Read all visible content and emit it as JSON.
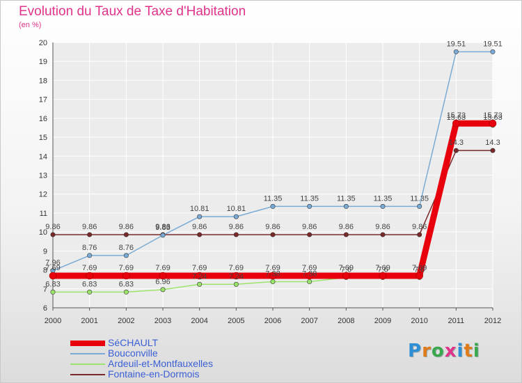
{
  "colors": {
    "title": "#e0338a",
    "axis_text": "#333333",
    "grid": "#ffffff"
  },
  "chart_data": {
    "type": "line",
    "title": "Evolution du Taux de Taxe d'Habitation",
    "subtitle": "(en %)",
    "ylim": [
      6,
      20
    ],
    "yticks": [
      6,
      7,
      8,
      9,
      10,
      11,
      12,
      13,
      14,
      15,
      16,
      17,
      18,
      19,
      20
    ],
    "categories": [
      "2000",
      "2001",
      "2002",
      "2003",
      "2004",
      "2005",
      "2006",
      "2007",
      "2008",
      "2009",
      "2010",
      "2011",
      "2012"
    ],
    "legend_position": "bottom-left",
    "series": [
      {
        "name": "SéCHAULT",
        "color": "#e8000d",
        "values": [
          7.69,
          7.69,
          7.69,
          7.69,
          7.69,
          7.69,
          7.69,
          7.69,
          7.69,
          7.69,
          7.69,
          15.73,
          15.73
        ]
      },
      {
        "name": "Bouconville",
        "color": "#7aabd6",
        "values": [
          7.96,
          8.76,
          8.76,
          9.83,
          10.81,
          10.81,
          11.35,
          11.35,
          11.35,
          11.35,
          11.35,
          19.51,
          19.51
        ]
      },
      {
        "name": "Ardeuil-et-Montfauxelles",
        "color": "#9be36b",
        "values": [
          6.83,
          6.83,
          6.83,
          6.96,
          7.24,
          7.24,
          7.38,
          7.38,
          7.6,
          7.6,
          7.6,
          15.63,
          15.63
        ]
      },
      {
        "name": "Fontaine-en-Dormois",
        "color": "#7a2a2a",
        "values": [
          9.86,
          9.86,
          9.86,
          9.86,
          9.86,
          9.86,
          9.86,
          9.86,
          9.86,
          9.86,
          9.86,
          14.3,
          14.3
        ]
      }
    ]
  },
  "logo": {
    "letters": [
      "P",
      "r",
      "o",
      "x",
      "i",
      "t",
      "i"
    ],
    "colors": [
      "#2e8fd6",
      "#e07b1a",
      "#3aa84c",
      "#e0338a",
      "#2e8fd6",
      "#e07b1a",
      "#3aa84c"
    ]
  }
}
